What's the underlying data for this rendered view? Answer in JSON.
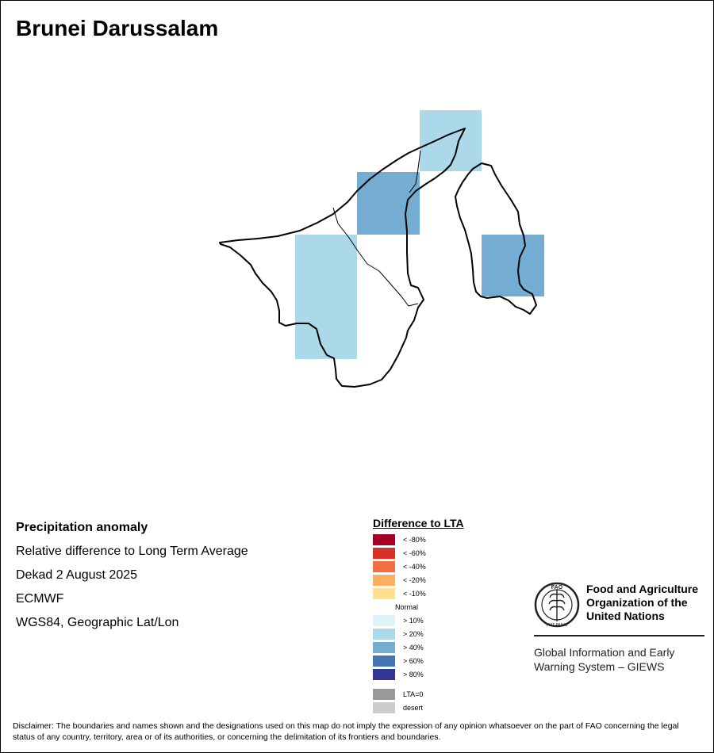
{
  "title": "Brunei Darussalam",
  "info": {
    "heading": "Precipitation anomaly",
    "line1": "Relative difference to Long Term Average",
    "line2": "Dekad 2 August 2025",
    "line3": "ECMWF",
    "line4": "WGS84, Geographic Lat/Lon"
  },
  "legend": {
    "title": "Difference to LTA",
    "items": [
      {
        "label": "< -80%",
        "color": "#a50026"
      },
      {
        "label": "< -60%",
        "color": "#d73027"
      },
      {
        "label": "< -40%",
        "color": "#f46d43"
      },
      {
        "label": "< -20%",
        "color": "#fdae61"
      },
      {
        "label": "< -10%",
        "color": "#fee090"
      },
      {
        "label": "Normal",
        "color": "#ffffff"
      },
      {
        "label": "> 10%",
        "color": "#e0f3f8"
      },
      {
        "label": "> 20%",
        "color": "#abd9e9"
      },
      {
        "label": "> 40%",
        "color": "#74add1"
      },
      {
        "label": "> 60%",
        "color": "#4575b4"
      },
      {
        "label": "> 80%",
        "color": "#313695"
      }
    ],
    "extra": [
      {
        "label": "LTA=0",
        "color": "#999999"
      },
      {
        "label": "desert",
        "color": "#cccccc"
      }
    ]
  },
  "grid_cells": [
    {
      "category": "> 20%",
      "color": "#abd9e9"
    },
    {
      "category": "> 40%",
      "color": "#74add1"
    },
    {
      "category": "> 20%",
      "color": "#abd9e9"
    },
    {
      "category": "> 40%",
      "color": "#74add1"
    }
  ],
  "logo": {
    "org_name": "Food and Agriculture Organization of the United Nations",
    "system_name": "Global Information and Early Warning System – GIEWS",
    "emblem_text": "FIAT PANIS",
    "emblem_letters": "FAO"
  },
  "disclaimer": "Disclaimer: The boundaries and names shown and the designations used on this map do not imply the expression of any opinion whatsoever on the part of FAO concerning the legal status of any country, territory, area or of its authorities, or concerning the delimitation of its frontiers and boundaries."
}
